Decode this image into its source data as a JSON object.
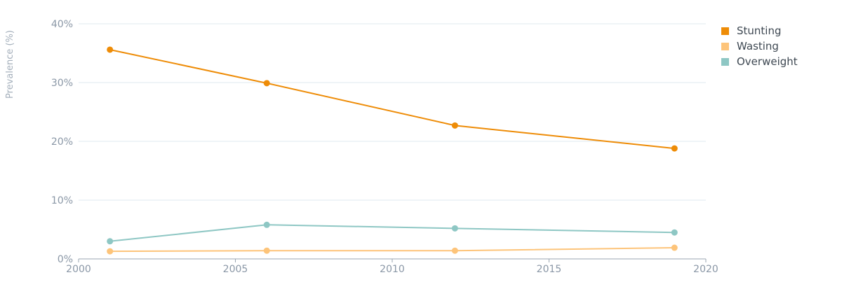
{
  "chart_data": {
    "type": "line",
    "title": "",
    "xlabel": "",
    "ylabel": "Prevalence (%)",
    "x": [
      2001,
      2006,
      2012,
      2019
    ],
    "xlim": [
      2000,
      2020
    ],
    "xticks": [
      2000,
      2005,
      2010,
      2015,
      2020
    ],
    "xtick_labels": [
      "2000",
      "2005",
      "2010",
      "2015",
      "2020"
    ],
    "ylim": [
      0,
      40
    ],
    "yticks": [
      0,
      10,
      20,
      30,
      40
    ],
    "ytick_labels": [
      "0%",
      "10%",
      "20%",
      "30%",
      "40%"
    ],
    "grid": "horizontal",
    "legend_position": "top-right",
    "series": [
      {
        "name": "Stunting",
        "color": "#ee8c07",
        "values": [
          35.6,
          29.9,
          22.7,
          18.8
        ]
      },
      {
        "name": "Wasting",
        "color": "#fdc47a",
        "values": [
          1.3,
          1.4,
          1.4,
          1.9
        ]
      },
      {
        "name": "Overweight",
        "color": "#8ec7c4",
        "values": [
          3.0,
          5.8,
          5.2,
          4.5
        ]
      }
    ]
  }
}
